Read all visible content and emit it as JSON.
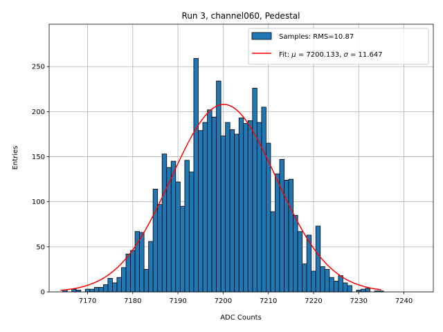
{
  "chart_data": {
    "type": "bar",
    "title": "Run 3, channel060, Pedestal",
    "xlabel": "ADC Counts",
    "ylabel": "Entries",
    "xlim": [
      7161.5,
      7246.5
    ],
    "ylim": [
      0,
      297
    ],
    "xticks": [
      7170,
      7180,
      7190,
      7200,
      7210,
      7220,
      7230,
      7240
    ],
    "yticks": [
      0,
      50,
      100,
      150,
      200,
      250
    ],
    "grid": true,
    "legend_position": "top-right",
    "histogram": {
      "name": "Samples: RMS=10.87",
      "color": "#1f77b4",
      "edgecolor": "#000000",
      "bins": [
        {
          "x": 7165,
          "y": 2
        },
        {
          "x": 7166,
          "y": 0
        },
        {
          "x": 7167,
          "y": 3
        },
        {
          "x": 7168,
          "y": 2
        },
        {
          "x": 7169,
          "y": 0
        },
        {
          "x": 7170,
          "y": 3
        },
        {
          "x": 7171,
          "y": 3
        },
        {
          "x": 7172,
          "y": 5
        },
        {
          "x": 7173,
          "y": 5
        },
        {
          "x": 7174,
          "y": 8
        },
        {
          "x": 7175,
          "y": 15
        },
        {
          "x": 7176,
          "y": 10
        },
        {
          "x": 7177,
          "y": 16
        },
        {
          "x": 7178,
          "y": 27
        },
        {
          "x": 7179,
          "y": 42
        },
        {
          "x": 7180,
          "y": 46
        },
        {
          "x": 7181,
          "y": 67
        },
        {
          "x": 7182,
          "y": 66
        },
        {
          "x": 7183,
          "y": 25
        },
        {
          "x": 7184,
          "y": 56
        },
        {
          "x": 7185,
          "y": 114
        },
        {
          "x": 7186,
          "y": 97
        },
        {
          "x": 7187,
          "y": 153
        },
        {
          "x": 7188,
          "y": 138
        },
        {
          "x": 7189,
          "y": 145
        },
        {
          "x": 7190,
          "y": 122
        },
        {
          "x": 7191,
          "y": 95
        },
        {
          "x": 7192,
          "y": 146
        },
        {
          "x": 7193,
          "y": 133
        },
        {
          "x": 7194,
          "y": 259
        },
        {
          "x": 7195,
          "y": 179
        },
        {
          "x": 7196,
          "y": 188
        },
        {
          "x": 7197,
          "y": 202
        },
        {
          "x": 7198,
          "y": 194
        },
        {
          "x": 7199,
          "y": 234
        },
        {
          "x": 7200,
          "y": 173
        },
        {
          "x": 7201,
          "y": 188
        },
        {
          "x": 7202,
          "y": 180
        },
        {
          "x": 7203,
          "y": 175
        },
        {
          "x": 7204,
          "y": 193
        },
        {
          "x": 7205,
          "y": 187
        },
        {
          "x": 7206,
          "y": 190
        },
        {
          "x": 7207,
          "y": 226
        },
        {
          "x": 7208,
          "y": 188
        },
        {
          "x": 7209,
          "y": 205
        },
        {
          "x": 7210,
          "y": 165
        },
        {
          "x": 7211,
          "y": 89
        },
        {
          "x": 7212,
          "y": 131
        },
        {
          "x": 7213,
          "y": 147
        },
        {
          "x": 7214,
          "y": 124
        },
        {
          "x": 7215,
          "y": 125
        },
        {
          "x": 7216,
          "y": 85
        },
        {
          "x": 7217,
          "y": 67
        },
        {
          "x": 7218,
          "y": 31
        },
        {
          "x": 7219,
          "y": 63
        },
        {
          "x": 7220,
          "y": 23
        },
        {
          "x": 7221,
          "y": 73
        },
        {
          "x": 7222,
          "y": 28
        },
        {
          "x": 7223,
          "y": 25
        },
        {
          "x": 7224,
          "y": 16
        },
        {
          "x": 7225,
          "y": 12
        },
        {
          "x": 7226,
          "y": 18
        },
        {
          "x": 7227,
          "y": 10
        },
        {
          "x": 7228,
          "y": 7
        },
        {
          "x": 7229,
          "y": 0
        },
        {
          "x": 7230,
          "y": 2
        },
        {
          "x": 7231,
          "y": 3
        },
        {
          "x": 7232,
          "y": 4
        },
        {
          "x": 7233,
          "y": 0
        },
        {
          "x": 7234,
          "y": 1
        },
        {
          "x": 7235,
          "y": 1
        },
        {
          "x": 7236,
          "y": 0
        },
        {
          "x": 7237,
          "y": 0
        },
        {
          "x": 7238,
          "y": 0
        },
        {
          "x": 7239,
          "y": 0
        },
        {
          "x": 7240,
          "y": 0
        },
        {
          "x": 7241,
          "y": 0
        },
        {
          "x": 7242,
          "y": 0
        },
        {
          "x": 7243,
          "y": 0
        }
      ]
    },
    "fit": {
      "name": "Fit: $\\mu$ = 7200.133, $\\sigma$ = 11.647",
      "label_prefix": "Fit: ",
      "mu_symbol": "μ",
      "mu_text": " = 7200.133, ",
      "sigma_symbol": "σ",
      "sigma_text": " = 11.647",
      "color": "#ff0000",
      "mu": 7200.133,
      "sigma": 11.647,
      "amplitude": 208,
      "x_range": [
        7164,
        7235
      ]
    }
  }
}
